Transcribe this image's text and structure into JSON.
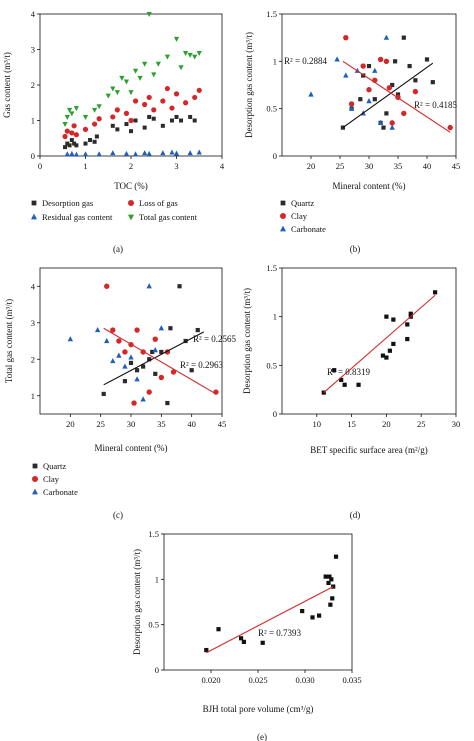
{
  "chart_data": [
    {
      "panel": "(a)",
      "type": "scatter",
      "xlabel": "TOC (%)",
      "ylabel": "Gas content (m³/t)",
      "xlim": [
        0,
        4
      ],
      "ylim": [
        0,
        4
      ],
      "xticks": [
        0,
        1,
        2,
        3,
        4
      ],
      "yticks": [
        0,
        1,
        2,
        3,
        4
      ],
      "legend_position": "bottom",
      "series": [
        {
          "name": "Desorption gas",
          "marker": "square",
          "color": "#2b2b2b",
          "points": [
            [
              0.55,
              0.25
            ],
            [
              0.6,
              0.35
            ],
            [
              0.65,
              0.3
            ],
            [
              0.7,
              0.45
            ],
            [
              0.75,
              0.35
            ],
            [
              0.8,
              0.3
            ],
            [
              1.0,
              0.35
            ],
            [
              1.1,
              0.45
            ],
            [
              1.2,
              0.4
            ],
            [
              1.25,
              0.55
            ],
            [
              1.6,
              0.85
            ],
            [
              1.7,
              0.75
            ],
            [
              1.9,
              0.9
            ],
            [
              2.0,
              0.7
            ],
            [
              2.1,
              1.0
            ],
            [
              2.3,
              0.8
            ],
            [
              2.4,
              1.1
            ],
            [
              2.5,
              1.05
            ],
            [
              2.7,
              0.85
            ],
            [
              2.9,
              1.0
            ],
            [
              3.0,
              1.1
            ],
            [
              3.1,
              1.0
            ],
            [
              3.3,
              1.1
            ],
            [
              3.4,
              1.0
            ]
          ]
        },
        {
          "name": "Loss of gas",
          "marker": "circle",
          "color": "#d62728",
          "points": [
            [
              0.55,
              0.55
            ],
            [
              0.6,
              0.7
            ],
            [
              0.7,
              0.65
            ],
            [
              0.75,
              0.85
            ],
            [
              0.8,
              0.6
            ],
            [
              1.0,
              0.75
            ],
            [
              1.2,
              0.9
            ],
            [
              1.3,
              1.05
            ],
            [
              1.6,
              1.1
            ],
            [
              1.7,
              1.3
            ],
            [
              1.9,
              1.2
            ],
            [
              2.0,
              1.0
            ],
            [
              2.1,
              1.55
            ],
            [
              2.3,
              1.45
            ],
            [
              2.4,
              1.65
            ],
            [
              2.5,
              1.3
            ],
            [
              2.7,
              1.55
            ],
            [
              2.8,
              1.9
            ],
            [
              2.9,
              1.35
            ],
            [
              3.0,
              1.75
            ],
            [
              3.2,
              1.5
            ],
            [
              3.4,
              1.65
            ],
            [
              3.5,
              1.85
            ]
          ]
        },
        {
          "name": "Residual gas content",
          "marker": "triangle-up",
          "color": "#1f5fbf",
          "points": [
            [
              0.6,
              0.05
            ],
            [
              0.7,
              0.06
            ],
            [
              0.8,
              0.04
            ],
            [
              1.0,
              0.05
            ],
            [
              1.3,
              0.05
            ],
            [
              1.6,
              0.08
            ],
            [
              1.9,
              0.06
            ],
            [
              2.1,
              0.05
            ],
            [
              2.3,
              0.08
            ],
            [
              2.4,
              0.06
            ],
            [
              2.7,
              0.08
            ],
            [
              2.9,
              0.1
            ],
            [
              3.0,
              0.07
            ],
            [
              3.3,
              0.08
            ],
            [
              3.5,
              0.1
            ]
          ]
        },
        {
          "name": "Total gas content",
          "marker": "triangle-down",
          "color": "#2ca02c",
          "points": [
            [
              0.55,
              0.9
            ],
            [
              0.6,
              1.1
            ],
            [
              0.65,
              1.3
            ],
            [
              0.7,
              1.2
            ],
            [
              0.8,
              1.35
            ],
            [
              1.0,
              1.1
            ],
            [
              1.2,
              1.3
            ],
            [
              1.3,
              1.4
            ],
            [
              1.5,
              1.7
            ],
            [
              1.6,
              1.9
            ],
            [
              1.7,
              1.8
            ],
            [
              1.8,
              2.2
            ],
            [
              1.9,
              2.1
            ],
            [
              2.0,
              1.8
            ],
            [
              2.1,
              2.4
            ],
            [
              2.2,
              2.2
            ],
            [
              2.3,
              2.6
            ],
            [
              2.4,
              4.0
            ],
            [
              2.5,
              2.3
            ],
            [
              2.6,
              2.6
            ],
            [
              2.8,
              2.8
            ],
            [
              3.0,
              3.3
            ],
            [
              3.1,
              2.5
            ],
            [
              3.2,
              2.9
            ],
            [
              3.3,
              2.85
            ],
            [
              3.4,
              2.8
            ],
            [
              3.5,
              2.9
            ]
          ]
        }
      ]
    },
    {
      "panel": "(b)",
      "type": "scatter",
      "xlabel": "Mineral content (%)",
      "ylabel": "Desorption gas content (m³/t)",
      "xlim": [
        15,
        45
      ],
      "ylim": [
        0,
        1.5
      ],
      "xticks": [
        20,
        25,
        30,
        35,
        40,
        45
      ],
      "yticks": [
        0,
        0.5,
        1.0,
        1.5
      ],
      "legend_position": "bottom",
      "series": [
        {
          "name": "Quartz",
          "marker": "square",
          "color": "#2b2b2b",
          "points": [
            [
              25.5,
              0.3
            ],
            [
              27,
              0.5
            ],
            [
              28.5,
              0.6
            ],
            [
              29,
              0.85
            ],
            [
              30,
              0.95
            ],
            [
              31,
              0.6
            ],
            [
              32,
              0.35
            ],
            [
              32.5,
              0.3
            ],
            [
              33,
              0.45
            ],
            [
              34,
              0.75
            ],
            [
              34.5,
              1.0
            ],
            [
              35,
              0.65
            ],
            [
              36,
              1.25
            ],
            [
              37,
              0.95
            ],
            [
              38,
              0.8
            ],
            [
              40,
              1.02
            ],
            [
              41,
              0.78
            ]
          ]
        },
        {
          "name": "Clay",
          "marker": "circle",
          "color": "#d62728",
          "points": [
            [
              26,
              1.25
            ],
            [
              27,
              0.55
            ],
            [
              29,
              0.95
            ],
            [
              30,
              0.7
            ],
            [
              31,
              0.8
            ],
            [
              32,
              1.02
            ],
            [
              33,
              1.0
            ],
            [
              33.5,
              0.72
            ],
            [
              34,
              0.35
            ],
            [
              35,
              0.62
            ],
            [
              36,
              0.45
            ],
            [
              38,
              0.68
            ],
            [
              44,
              0.3
            ]
          ]
        },
        {
          "name": "Carbonate",
          "marker": "triangle-up",
          "color": "#1f5fbf",
          "points": [
            [
              20,
              0.65
            ],
            [
              24.5,
              1.02
            ],
            [
              26,
              0.85
            ],
            [
              27,
              0.5
            ],
            [
              28,
              0.9
            ],
            [
              29,
              0.45
            ],
            [
              30,
              0.58
            ],
            [
              31,
              0.9
            ],
            [
              32,
              0.35
            ],
            [
              33,
              1.25
            ],
            [
              34,
              0.3
            ]
          ]
        }
      ],
      "fits": [
        {
          "series": "Quartz",
          "r2_label": "R² = 0.2884",
          "x": [
            25.5,
            41
          ],
          "y": [
            0.3,
            0.98
          ],
          "color": "#111111"
        },
        {
          "series": "Clay",
          "r2_label": "R² = 0.4185",
          "x": [
            25.5,
            44
          ],
          "y": [
            1.0,
            0.25
          ],
          "color": "#d62728"
        }
      ]
    },
    {
      "panel": "(c)",
      "type": "scatter",
      "xlabel": "Mineral content (%)",
      "ylabel": "Total gas content (m³/t)",
      "xlim": [
        15,
        45
      ],
      "ylim": [
        0.5,
        4.5
      ],
      "xticks": [
        20,
        25,
        30,
        35,
        40,
        45
      ],
      "yticks": [
        1,
        2,
        3,
        4
      ],
      "legend_position": "bottom",
      "series": [
        {
          "name": "Quartz",
          "marker": "square",
          "color": "#2b2b2b",
          "points": [
            [
              25.5,
              1.05
            ],
            [
              29,
              1.4
            ],
            [
              30,
              1.9
            ],
            [
              31,
              1.7
            ],
            [
              32,
              1.8
            ],
            [
              33,
              2.0
            ],
            [
              33.5,
              2.2
            ],
            [
              34,
              1.6
            ],
            [
              35,
              2.2
            ],
            [
              36,
              0.8
            ],
            [
              36.5,
              2.85
            ],
            [
              38,
              4.0
            ],
            [
              39,
              2.5
            ],
            [
              40,
              1.7
            ],
            [
              41,
              2.8
            ]
          ]
        },
        {
          "name": "Clay",
          "marker": "circle",
          "color": "#d62728",
          "points": [
            [
              26,
              4.0
            ],
            [
              27,
              2.8
            ],
            [
              28,
              2.5
            ],
            [
              29,
              2.2
            ],
            [
              30,
              2.4
            ],
            [
              30.5,
              0.8
            ],
            [
              31,
              2.8
            ],
            [
              32,
              2.2
            ],
            [
              33,
              1.1
            ],
            [
              34,
              2.55
            ],
            [
              35,
              1.5
            ],
            [
              36,
              2.2
            ],
            [
              37,
              1.65
            ],
            [
              44,
              1.1
            ]
          ]
        },
        {
          "name": "Carbonate",
          "marker": "triangle-up",
          "color": "#1f5fbf",
          "points": [
            [
              20,
              2.55
            ],
            [
              24.5,
              2.8
            ],
            [
              26,
              2.5
            ],
            [
              27,
              1.95
            ],
            [
              28,
              2.1
            ],
            [
              29,
              1.8
            ],
            [
              30,
              2.05
            ],
            [
              31,
              1.45
            ],
            [
              32,
              0.9
            ],
            [
              33,
              4.0
            ],
            [
              34,
              2.25
            ],
            [
              35,
              2.85
            ]
          ]
        }
      ],
      "fits": [
        {
          "series": "Quartz",
          "r2_label": "R² = 0.2565",
          "x": [
            25.5,
            42
          ],
          "y": [
            1.3,
            2.75
          ],
          "color": "#111111"
        },
        {
          "series": "Clay",
          "r2_label": "R² = 0.2963",
          "x": [
            25.5,
            44
          ],
          "y": [
            2.85,
            1.05
          ],
          "color": "#d62728"
        }
      ]
    },
    {
      "panel": "(d)",
      "type": "scatter",
      "xlabel": "BET specific surface area (m²/g)",
      "ylabel": "Desorption gas content (m³/t)",
      "xlim": [
        5,
        30
      ],
      "ylim": [
        0,
        1.5
      ],
      "xticks": [
        10,
        15,
        20,
        25,
        30
      ],
      "yticks": [
        0,
        0.5,
        1.0,
        1.5
      ],
      "series": [
        {
          "name": "",
          "marker": "square",
          "color": "#111111",
          "points": [
            [
              11,
              0.22
            ],
            [
              12.5,
              0.45
            ],
            [
              13.5,
              0.35
            ],
            [
              14,
              0.3
            ],
            [
              16,
              0.3
            ],
            [
              19.5,
              0.6
            ],
            [
              20,
              0.58
            ],
            [
              20,
              1.0
            ],
            [
              20.5,
              0.65
            ],
            [
              21,
              0.72
            ],
            [
              21,
              0.97
            ],
            [
              23,
              0.77
            ],
            [
              23,
              0.92
            ],
            [
              23.5,
              1.03
            ],
            [
              23.5,
              1.0
            ],
            [
              27,
              1.25
            ]
          ]
        }
      ],
      "fits": [
        {
          "series": "",
          "r2_label": "R² = 0.8319",
          "x": [
            11,
            27
          ],
          "y": [
            0.22,
            1.22
          ],
          "color": "#d62728"
        }
      ]
    },
    {
      "panel": "(e)",
      "type": "scatter",
      "xlabel": "BJH total pore volume (cm³/g)",
      "ylabel": "Desorption gas content (m³/t)",
      "xlim": [
        0.015,
        0.035
      ],
      "ylim": [
        0,
        1.5
      ],
      "xticks": [
        0.02,
        0.025,
        0.03,
        0.035
      ],
      "yticks": [
        0,
        0.5,
        1.0,
        1.5
      ],
      "series": [
        {
          "name": "",
          "marker": "square",
          "color": "#111111",
          "points": [
            [
              0.0195,
              0.22
            ],
            [
              0.0208,
              0.45
            ],
            [
              0.0232,
              0.35
            ],
            [
              0.0235,
              0.31
            ],
            [
              0.0255,
              0.3
            ],
            [
              0.0297,
              0.65
            ],
            [
              0.0308,
              0.58
            ],
            [
              0.0315,
              0.6
            ],
            [
              0.0322,
              1.03
            ],
            [
              0.0325,
              0.96
            ],
            [
              0.0326,
              1.03
            ],
            [
              0.0327,
              0.72
            ],
            [
              0.0328,
              1.0
            ],
            [
              0.0329,
              0.79
            ],
            [
              0.033,
              0.92
            ],
            [
              0.0333,
              1.25
            ]
          ]
        }
      ],
      "fits": [
        {
          "series": "",
          "r2_label": "R² = 0.7393",
          "x": [
            0.0195,
            0.033
          ],
          "y": [
            0.19,
            0.92
          ],
          "color": "#d62728"
        }
      ]
    }
  ]
}
